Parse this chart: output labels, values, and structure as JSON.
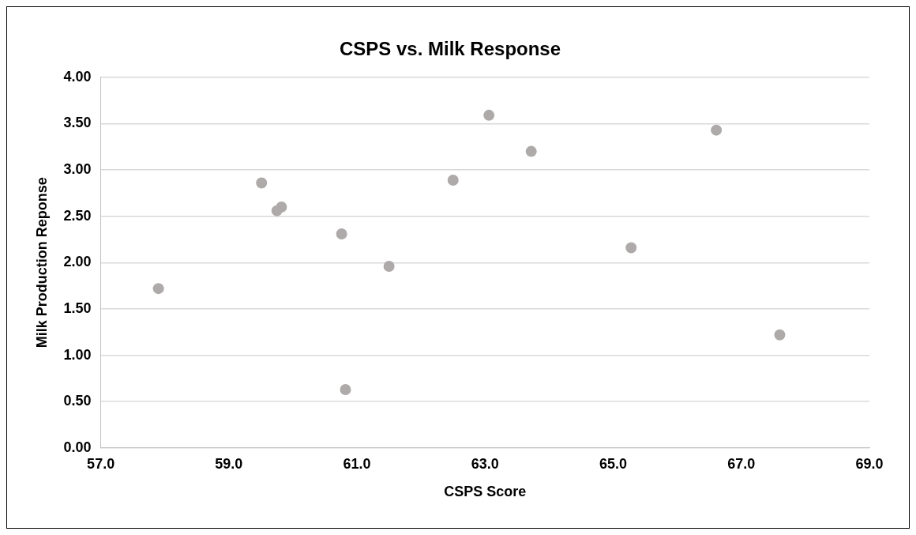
{
  "chart_data": {
    "type": "scatter",
    "title": "CSPS vs. Milk Response",
    "xlabel": "CSPS Score",
    "ylabel": "Milk Production Reponse",
    "series": [
      {
        "color": "#aeaaaa",
        "x": [
          57.9,
          59.51,
          59.82,
          59.75,
          60.76,
          61.5,
          60.82,
          62.5,
          63.06,
          63.72,
          65.28,
          66.61,
          67.6
        ],
        "values": [
          1.72,
          2.86,
          2.6,
          2.56,
          2.31,
          1.96,
          0.63,
          2.89,
          3.59,
          3.2,
          2.16,
          3.43,
          1.22
        ]
      }
    ],
    "xlim": [
      57,
      69
    ],
    "xticks": [
      {
        "value": 57,
        "label": "57.0"
      },
      {
        "value": 59,
        "label": "59.0"
      },
      {
        "value": 61,
        "label": "61.0"
      },
      {
        "value": 63,
        "label": "63.0"
      },
      {
        "value": 65,
        "label": "65.0"
      },
      {
        "value": 67,
        "label": "67.0"
      },
      {
        "value": 69,
        "label": "69.0"
      }
    ],
    "ylim": [
      0,
      4
    ],
    "yticks": [
      {
        "value": 0,
        "label": "0.00"
      },
      {
        "value": 0.5,
        "label": "0.50"
      },
      {
        "value": 1,
        "label": "1.00"
      },
      {
        "value": 1.5,
        "label": "1.50"
      },
      {
        "value": 2,
        "label": "2.00"
      },
      {
        "value": 2.5,
        "label": "2.50"
      },
      {
        "value": 3,
        "label": "3.00"
      },
      {
        "value": 3.5,
        "label": "3.50"
      },
      {
        "value": 4,
        "label": "4.00"
      }
    ],
    "grid": "y",
    "legend": false,
    "marker": "circle"
  }
}
